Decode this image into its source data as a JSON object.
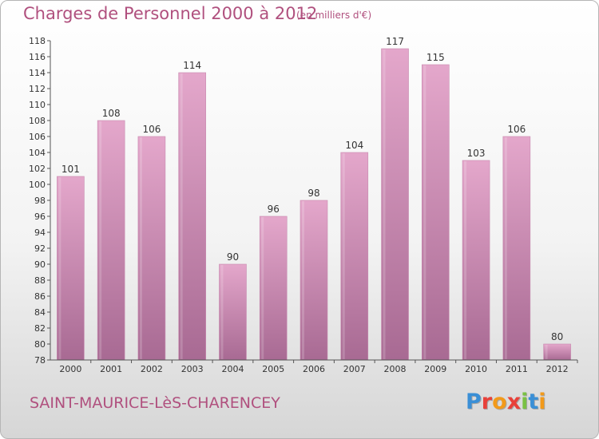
{
  "title": "Charges de Personnel 2000 à 2012",
  "unit": "(en milliers d'€)",
  "commune": "SAINT-MAURICE-LèS-CHARENCEY",
  "logo": {
    "text": "Proxiti",
    "letter_colors": [
      "#3a8fd6",
      "#e8413a",
      "#f29a1a",
      "#e8413a",
      "#7ac143",
      "#3a8fd6",
      "#f29a1a"
    ]
  },
  "colors": {
    "bar_top": "#e4a7cb",
    "bar_bottom": "#a86a93",
    "text": "#b0507e",
    "axis": "#555555"
  },
  "chart_data": {
    "type": "bar",
    "categories": [
      "2000",
      "2001",
      "2002",
      "2003",
      "2004",
      "2005",
      "2006",
      "2007",
      "2008",
      "2009",
      "2010",
      "2011",
      "2012"
    ],
    "values": [
      101,
      108,
      106,
      114,
      90,
      96,
      98,
      104,
      117,
      115,
      103,
      106,
      80
    ],
    "data_labels": [
      "101",
      "108",
      "106",
      "114",
      "90",
      "96",
      "98",
      "104",
      "117",
      "115",
      "103",
      "106",
      "80"
    ],
    "yticks": [
      "78",
      "80",
      "82",
      "84",
      "86",
      "88",
      "90",
      "92",
      "94",
      "96",
      "98",
      "100",
      "102",
      "104",
      "106",
      "108",
      "110",
      "112",
      "114",
      "116",
      "118"
    ],
    "ylim": [
      78,
      118
    ],
    "grid": false
  }
}
